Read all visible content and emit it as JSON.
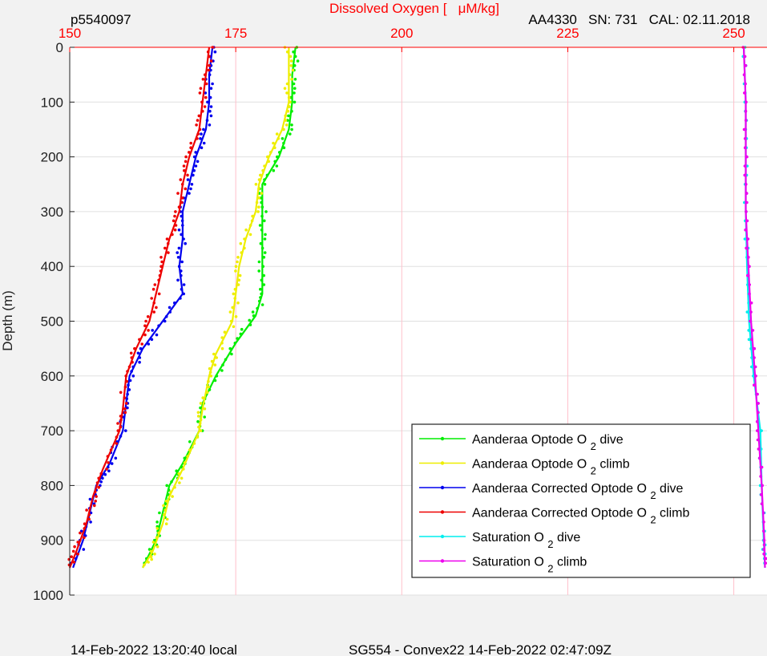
{
  "header": {
    "left_id": "p5540097",
    "right_info": "AA4330   SN: 731   CAL: 02.11.2018"
  },
  "footer": {
    "left": "14-Feb-2022 13:20:40 local",
    "center": "SG554 - Convex22 14-Feb-2022 02:47:09Z"
  },
  "chart_data": {
    "type": "line",
    "title": "",
    "xlabel": "Dissolved Oxygen [   μM/kg]",
    "ylabel": "Depth (m)",
    "xlim": [
      150,
      255
    ],
    "ylim": [
      0,
      1000
    ],
    "y_reversed": true,
    "x_axis_position": "top",
    "x_ticks": [
      150,
      175,
      200,
      225,
      250
    ],
    "y_ticks": [
      0,
      100,
      200,
      300,
      400,
      500,
      600,
      700,
      800,
      900,
      1000
    ],
    "grid": true,
    "legend_position": "bottom-right",
    "colors": {
      "axis_x": "#ff0000",
      "grid_x": "#ffc0cb",
      "grid_y": "#e0e0e0",
      "plot_bg": "#ffffff",
      "figure_bg": "#f2f2f2"
    },
    "series": [
      {
        "name": "Aanderaa Optode O 2 dive",
        "label_parts": [
          "Aanderaa Optode O",
          "2",
          "dive"
        ],
        "color": "#00ee00",
        "points": [
          [
            184,
            0
          ],
          [
            183.5,
            50
          ],
          [
            183.5,
            100
          ],
          [
            183,
            150
          ],
          [
            181.5,
            200
          ],
          [
            179,
            250
          ],
          [
            179,
            300
          ],
          [
            179,
            350
          ],
          [
            179,
            400
          ],
          [
            179,
            450
          ],
          [
            178,
            490
          ],
          [
            175,
            540
          ],
          [
            172,
            600
          ],
          [
            170,
            650
          ],
          [
            169.5,
            700
          ],
          [
            167,
            760
          ],
          [
            165,
            800
          ],
          [
            164,
            850
          ],
          [
            163,
            900
          ],
          [
            161,
            950
          ]
        ]
      },
      {
        "name": "Aanderaa Optode O 2 climb",
        "label_parts": [
          "Aanderaa Optode O",
          "2",
          "climb"
        ],
        "color": "#eeee00",
        "points": [
          [
            183,
            0
          ],
          [
            183,
            50
          ],
          [
            183,
            100
          ],
          [
            182,
            150
          ],
          [
            180,
            200
          ],
          [
            178.5,
            250
          ],
          [
            178,
            300
          ],
          [
            176.5,
            350
          ],
          [
            175.5,
            400
          ],
          [
            175,
            450
          ],
          [
            174.5,
            500
          ],
          [
            172,
            560
          ],
          [
            171,
            600
          ],
          [
            170,
            660
          ],
          [
            169.5,
            700
          ],
          [
            167,
            770
          ],
          [
            165,
            820
          ],
          [
            164,
            870
          ],
          [
            162.5,
            920
          ],
          [
            161,
            950
          ]
        ]
      },
      {
        "name": "Aanderaa Corrected Optode O 2 dive",
        "label_parts": [
          "Aanderaa Corrected Optode O",
          "2",
          "dive"
        ],
        "color": "#0000ee",
        "points": [
          [
            171.5,
            0
          ],
          [
            171,
            50
          ],
          [
            171,
            100
          ],
          [
            170.5,
            150
          ],
          [
            169,
            200
          ],
          [
            168,
            250
          ],
          [
            167,
            300
          ],
          [
            167,
            350
          ],
          [
            166.5,
            400
          ],
          [
            167,
            450
          ],
          [
            164,
            500
          ],
          [
            161,
            550
          ],
          [
            159,
            600
          ],
          [
            158.5,
            650
          ],
          [
            158,
            700
          ],
          [
            156,
            760
          ],
          [
            154,
            800
          ],
          [
            153,
            850
          ],
          [
            152,
            900
          ],
          [
            150.5,
            950
          ]
        ]
      },
      {
        "name": "Aanderaa Corrected Optode O 2 climb",
        "label_parts": [
          "Aanderaa Corrected Optode O",
          "2",
          "climb"
        ],
        "color": "#ee0000",
        "points": [
          [
            171,
            0
          ],
          [
            170.5,
            50
          ],
          [
            170,
            100
          ],
          [
            169.5,
            150
          ],
          [
            168,
            200
          ],
          [
            167,
            250
          ],
          [
            166.5,
            300
          ],
          [
            165,
            350
          ],
          [
            164,
            400
          ],
          [
            163,
            450
          ],
          [
            162,
            500
          ],
          [
            160,
            550
          ],
          [
            158.5,
            600
          ],
          [
            158,
            660
          ],
          [
            157.5,
            700
          ],
          [
            155,
            770
          ],
          [
            153.5,
            820
          ],
          [
            152.5,
            870
          ],
          [
            151,
            920
          ],
          [
            150,
            950
          ]
        ]
      },
      {
        "name": "Saturation O 2 dive",
        "label_parts": [
          "Saturation O",
          "2",
          "dive"
        ],
        "color": "#00eeee",
        "points": [
          [
            251.5,
            0
          ],
          [
            251.8,
            100
          ],
          [
            251.8,
            200
          ],
          [
            251.8,
            300
          ],
          [
            252,
            400
          ],
          [
            252.3,
            500
          ],
          [
            253,
            600
          ],
          [
            254,
            700
          ],
          [
            254.2,
            800
          ],
          [
            254.5,
            900
          ],
          [
            254.7,
            950
          ]
        ]
      },
      {
        "name": "Saturation O 2 climb",
        "label_parts": [
          "Saturation O",
          "2",
          "climb"
        ],
        "color": "#ee00ee",
        "points": [
          [
            251.5,
            0
          ],
          [
            251.8,
            100
          ],
          [
            251.8,
            200
          ],
          [
            251.8,
            300
          ],
          [
            252.2,
            400
          ],
          [
            252.6,
            500
          ],
          [
            253.2,
            600
          ],
          [
            253.7,
            700
          ],
          [
            254.2,
            800
          ],
          [
            254.6,
            900
          ],
          [
            254.7,
            950
          ]
        ]
      }
    ]
  }
}
